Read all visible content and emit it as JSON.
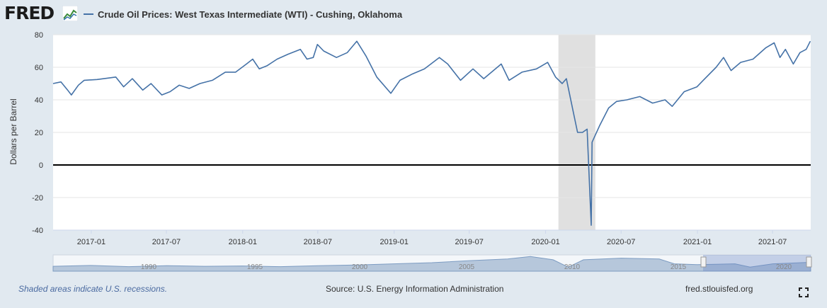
{
  "header": {
    "logo_text": "FRED",
    "logo_icon": "fred-graph-icon",
    "series_title": "Crude Oil Prices: West Texas Intermediate (WTI) - Cushing, Oklahoma"
  },
  "footer": {
    "recession_note": "Shaded areas indicate U.S. recessions.",
    "source": "Source: U.S. Energy Information Administration",
    "site": "fred.stlouisfed.org",
    "fullscreen_icon": "fullscreen-icon"
  },
  "colors": {
    "series": "#4572a7",
    "recession": "#e0e0e0",
    "background": "#e1e9f0",
    "plot": "#ffffff"
  },
  "chart_data": {
    "type": "line",
    "title": "",
    "ylabel": "Dollars per Barrel",
    "xlabel": "",
    "ylim": [
      -40,
      80
    ],
    "yticks": [
      -40,
      -20,
      0,
      20,
      40,
      60,
      80
    ],
    "xlim": [
      "2016-10-01",
      "2021-10-01"
    ],
    "xticks": [
      "2017-01",
      "2017-07",
      "2018-01",
      "2018-07",
      "2019-01",
      "2019-07",
      "2020-01",
      "2020-07",
      "2021-01",
      "2021-07"
    ],
    "grid": true,
    "recessions": [
      {
        "start": "2020-02-01",
        "end": "2020-04-30"
      }
    ],
    "series": [
      {
        "name": "Crude Oil Prices: West Texas Intermediate (WTI) - Cushing, Oklahoma",
        "points": [
          [
            "2016-10-01",
            50
          ],
          [
            "2016-10-20",
            51
          ],
          [
            "2016-11-05",
            46
          ],
          [
            "2016-11-14",
            43
          ],
          [
            "2016-12-01",
            49
          ],
          [
            "2016-12-15",
            52
          ],
          [
            "2017-01-15",
            52.5
          ],
          [
            "2017-02-15",
            53.5
          ],
          [
            "2017-03-01",
            54
          ],
          [
            "2017-03-20",
            48
          ],
          [
            "2017-04-10",
            53
          ],
          [
            "2017-05-05",
            46
          ],
          [
            "2017-05-25",
            50
          ],
          [
            "2017-06-20",
            43
          ],
          [
            "2017-07-10",
            45
          ],
          [
            "2017-08-01",
            49
          ],
          [
            "2017-08-25",
            47
          ],
          [
            "2017-09-20",
            50
          ],
          [
            "2017-10-20",
            52
          ],
          [
            "2017-11-20",
            57
          ],
          [
            "2017-12-15",
            57
          ],
          [
            "2018-01-10",
            62
          ],
          [
            "2018-01-25",
            65
          ],
          [
            "2018-02-10",
            59
          ],
          [
            "2018-03-01",
            61
          ],
          [
            "2018-03-25",
            65
          ],
          [
            "2018-04-20",
            68
          ],
          [
            "2018-05-20",
            71
          ],
          [
            "2018-06-05",
            65
          ],
          [
            "2018-06-20",
            66
          ],
          [
            "2018-06-30",
            74
          ],
          [
            "2018-07-15",
            70
          ],
          [
            "2018-08-15",
            66
          ],
          [
            "2018-09-10",
            69
          ],
          [
            "2018-10-03",
            76
          ],
          [
            "2018-10-25",
            67
          ],
          [
            "2018-11-20",
            54
          ],
          [
            "2018-12-24",
            44
          ],
          [
            "2019-01-15",
            52
          ],
          [
            "2019-02-15",
            56
          ],
          [
            "2019-03-15",
            59
          ],
          [
            "2019-04-20",
            66
          ],
          [
            "2019-05-10",
            62
          ],
          [
            "2019-06-10",
            52
          ],
          [
            "2019-07-10",
            59
          ],
          [
            "2019-08-05",
            53
          ],
          [
            "2019-09-16",
            62
          ],
          [
            "2019-10-05",
            52
          ],
          [
            "2019-11-05",
            57
          ],
          [
            "2019-12-10",
            59
          ],
          [
            "2020-01-06",
            63
          ],
          [
            "2020-01-25",
            54
          ],
          [
            "2020-02-10",
            50
          ],
          [
            "2020-02-20",
            53
          ],
          [
            "2020-03-09",
            31
          ],
          [
            "2020-03-18",
            20
          ],
          [
            "2020-03-30",
            20
          ],
          [
            "2020-04-10",
            22
          ],
          [
            "2020-04-20",
            -37
          ],
          [
            "2020-04-22",
            14
          ],
          [
            "2020-05-10",
            24
          ],
          [
            "2020-06-01",
            35
          ],
          [
            "2020-06-20",
            39
          ],
          [
            "2020-07-15",
            40
          ],
          [
            "2020-08-15",
            42
          ],
          [
            "2020-09-15",
            38
          ],
          [
            "2020-10-15",
            40
          ],
          [
            "2020-11-01",
            36
          ],
          [
            "2020-11-30",
            45
          ],
          [
            "2020-12-31",
            48
          ],
          [
            "2021-01-15",
            52
          ],
          [
            "2021-02-15",
            60
          ],
          [
            "2021-03-05",
            66
          ],
          [
            "2021-03-23",
            58
          ],
          [
            "2021-04-15",
            63
          ],
          [
            "2021-05-15",
            65
          ],
          [
            "2021-06-15",
            72
          ],
          [
            "2021-07-05",
            75
          ],
          [
            "2021-07-19",
            66
          ],
          [
            "2021-08-01",
            71
          ],
          [
            "2021-08-20",
            62
          ],
          [
            "2021-09-05",
            69
          ],
          [
            "2021-09-20",
            71
          ],
          [
            "2021-09-30",
            76
          ]
        ]
      }
    ],
    "navigator": {
      "labels": [
        "1990",
        "1995",
        "2000",
        "2005",
        "2010",
        "2015",
        "2020"
      ]
    }
  }
}
